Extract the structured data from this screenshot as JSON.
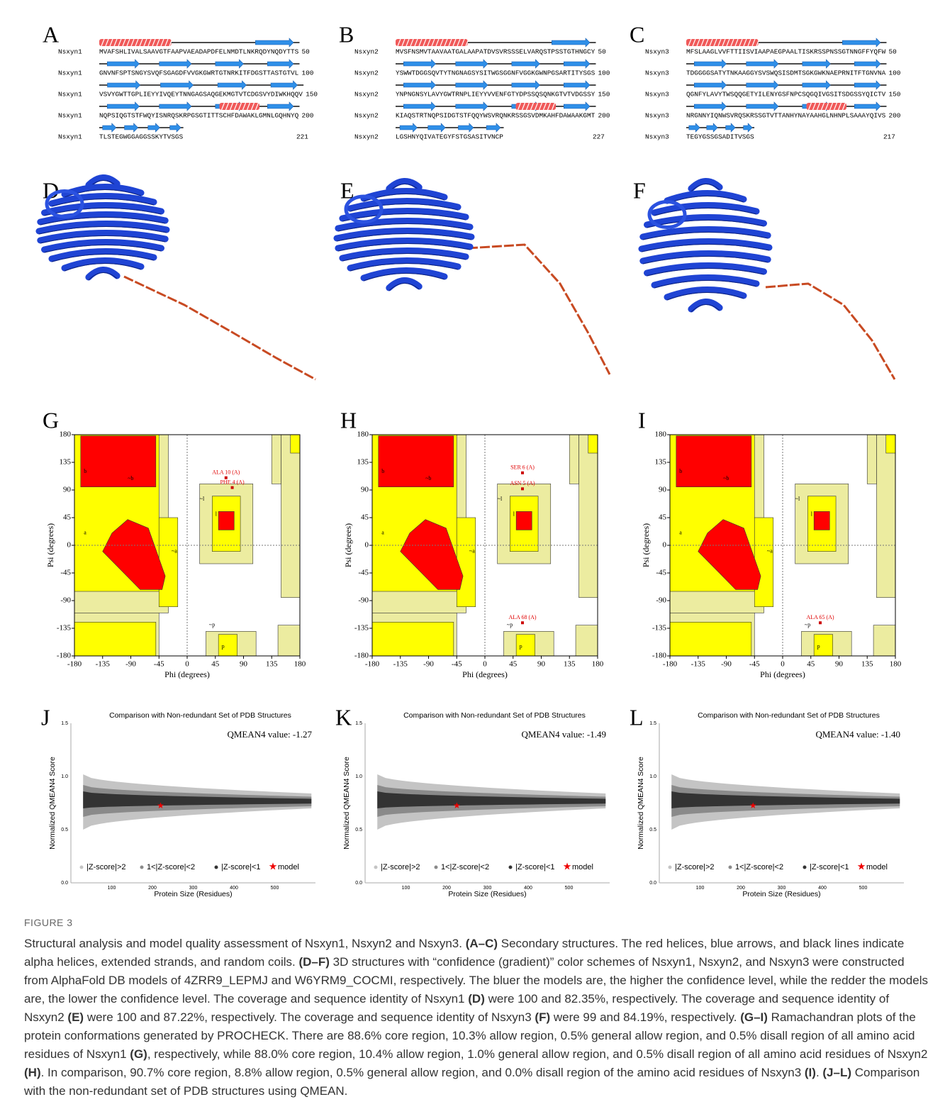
{
  "sequence_panels": [
    {
      "letter": "A",
      "rows": [
        {
          "name": "Nsxyn1",
          "sequence": "MVAFSHLIVALSAAVGTFAAPVAEADAPDFELNMDTLNKRQDYNQDYTTS",
          "end": "50"
        },
        {
          "name": "Nsxyn1",
          "sequence": "GNVNFSPTSNGYSVQFSGAGDFVVGKGWRTGTNRKITFDGSTTASTGTVL",
          "end": "100"
        },
        {
          "name": "Nsxyn1",
          "sequence": "VSVYGWTTGPLIEYYIVQEYTNNGAGSAQGEKMGTVTCDGSVYDIWKHQQV",
          "end": "150"
        },
        {
          "name": "Nsxyn1",
          "sequence": "NQPSIQGTSTFWQYISNRQSKRPGSGTITTSCHFDAWAKLGMNLGQHNYQ",
          "end": "200"
        },
        {
          "name": "Nsxyn1",
          "sequence": "TLSTEGWGGAGGSSKYTVSGS",
          "end": "221"
        }
      ]
    },
    {
      "letter": "B",
      "rows": [
        {
          "name": "Nsxyn2",
          "sequence": "MVSFNSMVTAAVAATGALAAPATDVSVRSSSELVARQSTPSSTGTHNGCY",
          "end": "50"
        },
        {
          "name": "Nsxyn2",
          "sequence": "YSWWTDGGSQVTYTNGNAGSYSITWGSGGNFVGGKGWNPGSARTITYSGS",
          "end": "100"
        },
        {
          "name": "Nsxyn2",
          "sequence": "YNPNGNSYLAVYGWTRNPLIEYYVVENFGTYDPSSQSQNKGTVTVDGSSY",
          "end": "150"
        },
        {
          "name": "Nsxyn2",
          "sequence": "KIAQSTRTNQPSIDGTSTFQQYWSVRQNKRSSGSVDMKAHFDAWAAKGMT",
          "end": "200"
        },
        {
          "name": "Nsxyn2",
          "sequence": "LGSHNYQIVATEGYFSTGSASITVNCP",
          "end": "227"
        }
      ]
    },
    {
      "letter": "C",
      "rows": [
        {
          "name": "Nsxyn3",
          "sequence": "MFSLAAGLVVFTTIISVIAAPAEGPAALTISKRSSPNSSGTNNGFFYQFW",
          "end": "50"
        },
        {
          "name": "Nsxyn3",
          "sequence": "TDGGGGSATYTNKAAGGYSVSWQSISDMTSGKGWKNAEPRNITFTGNVNA",
          "end": "100"
        },
        {
          "name": "Nsxyn3",
          "sequence": "QGNFYLAVYTWSQQGETYILENYGSFNPCSQGQIVGSITSDGSSYQICTV",
          "end": "150"
        },
        {
          "name": "Nsxyn3",
          "sequence": "NRGNNYIQNWSVRQSKRSSGTVTTANHYNAYAAHGLNHNPLSAAAYQIVS",
          "end": "200"
        },
        {
          "name": "Nsxyn3",
          "sequence": "TEGYGSSGSADITVSGS",
          "end": "217"
        }
      ]
    }
  ],
  "structure_panels": [
    {
      "letter": "D"
    },
    {
      "letter": "E"
    },
    {
      "letter": "F"
    }
  ],
  "ramachandran_axes": {
    "xlabel": "Phi (degrees)",
    "ylabel": "Psi (degrees)",
    "ticks": [
      "-180",
      "-135",
      "-90",
      "-45",
      "0",
      "45",
      "90",
      "135",
      "180"
    ],
    "region_labels": [
      "b",
      "a",
      "~b",
      "~a",
      "~l",
      "~p",
      "p",
      "l"
    ]
  },
  "ramachandran_panels": [
    {
      "letter": "G",
      "annotations": [
        "ALA 10 (A)",
        "PHE 4 (A)"
      ]
    },
    {
      "letter": "H",
      "annotations": [
        "SER 6 (A)",
        "ASN 5 (A)",
        "ALA 68 (A)"
      ]
    },
    {
      "letter": "I",
      "annotations": [
        "ALA 65 (A)"
      ]
    }
  ],
  "qmean_axes": {
    "title": "Comparison with Non-redundant Set of PDB Structures",
    "ylabel": "Normalized QMEAN4 Score",
    "xlabel": "Protein Size (Residues)",
    "yticks": [
      "0.0",
      "0.5",
      "1.0",
      "1.5"
    ],
    "xticks": [
      "100",
      "200",
      "300",
      "400",
      "500"
    ],
    "legend": [
      "|Z-score|>2",
      "1<|Z-score|<2",
      "|Z-score|<1",
      "model"
    ]
  },
  "qmean_panels": [
    {
      "letter": "J",
      "score": "QMEAN4 value: -1.27"
    },
    {
      "letter": "K",
      "score": "QMEAN4 value: -1.49"
    },
    {
      "letter": "L",
      "score": "QMEAN4 value: -1.40"
    }
  ],
  "caption": {
    "label": "FIGURE 3",
    "segments": [
      {
        "text": "Structural analysis and model quality assessment of Nsxyn1, Nsxyn2 and Nsxyn3. ",
        "bold": false
      },
      {
        "text": "(A–C)",
        "bold": true
      },
      {
        "text": " Secondary structures. The red helices, blue arrows, and black lines indicate alpha helices, extended strands, and random coils. ",
        "bold": false
      },
      {
        "text": "(D–F)",
        "bold": true
      },
      {
        "text": " 3D structures with “confidence (gradient)” color schemes of Nsxyn1, Nsxyn2, and Nsxyn3 were constructed from AlphaFold DB models of 4ZRR9_LEPMJ and W6YRM9_COCMI, respectively. The bluer the models are, the higher the confidence level, while the redder the models are, the lower the confidence level. The coverage and sequence identity of Nsxyn1 ",
        "bold": false
      },
      {
        "text": "(D)",
        "bold": true
      },
      {
        "text": " were 100 and 82.35%, respectively. The coverage and sequence identity of Nsxyn2 ",
        "bold": false
      },
      {
        "text": "(E)",
        "bold": true
      },
      {
        "text": " were 100 and 87.22%, respectively. The coverage and sequence identity of Nsxyn3 ",
        "bold": false
      },
      {
        "text": "(F)",
        "bold": true
      },
      {
        "text": " were 99 and 84.19%, respectively. ",
        "bold": false
      },
      {
        "text": "(G–I)",
        "bold": true
      },
      {
        "text": " Ramachandran plots of the protein conformations generated by PROCHECK. There are 88.6% core region, 10.3% allow region, 0.5% general allow region, and 0.5% disall region of all amino acid residues of Nsxyn1 ",
        "bold": false
      },
      {
        "text": "(G)",
        "bold": true
      },
      {
        "text": ", respectively, while 88.0% core region, 10.4% allow region, 1.0% general allow region, and 0.5% disall region of all amino acid residues of Nsxyn2 ",
        "bold": false
      },
      {
        "text": "(H)",
        "bold": true
      },
      {
        "text": ". In comparison, 90.7% core region, 8.8% allow region, 0.5% general allow region, and 0.0% disall region of the amino acid residues of Nsxyn3 ",
        "bold": false
      },
      {
        "text": "(I)",
        "bold": true
      },
      {
        "text": ". ",
        "bold": false
      },
      {
        "text": "(J–L)",
        "bold": true
      },
      {
        "text": " Comparison with the non-redundant set of PDB structures using QMEAN.",
        "bold": false
      }
    ]
  }
}
